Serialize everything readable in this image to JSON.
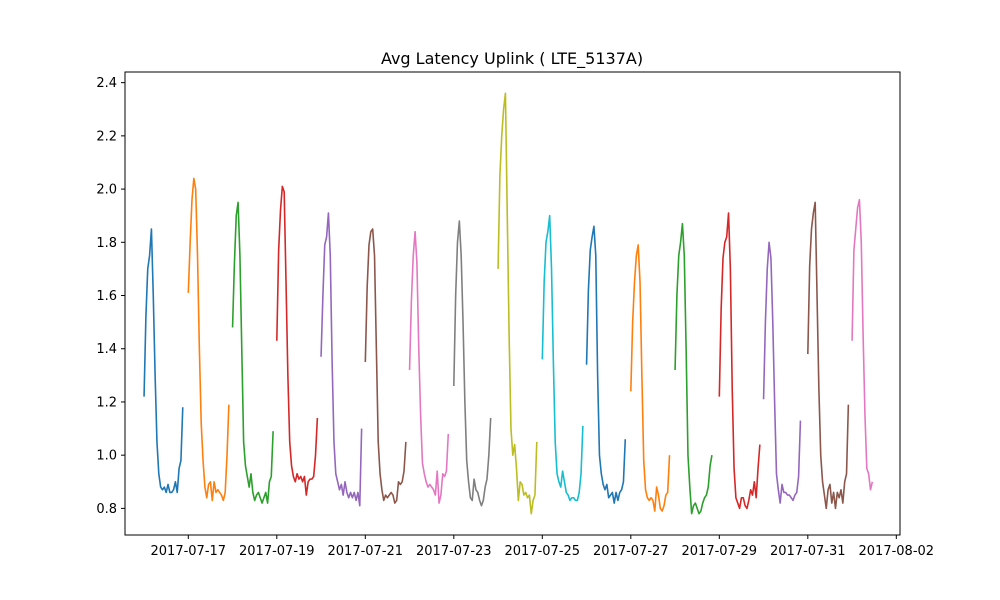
{
  "chart_data": {
    "type": "line",
    "title": "Avg Latency Uplink ( LTE_5137A)",
    "xlabel": "",
    "ylabel": "",
    "xlim": [
      "2017-07-15T13:40",
      "2017-08-02T02:00"
    ],
    "ylim": [
      0.7,
      2.44
    ],
    "grid": false,
    "legend": false,
    "x_ticks": [
      "2017-07-17",
      "2017-07-19",
      "2017-07-21",
      "2017-07-23",
      "2017-07-25",
      "2017-07-27",
      "2017-07-29",
      "2017-07-31",
      "2017-08-02"
    ],
    "y_ticks": [
      "0.8",
      "1.0",
      "1.2",
      "1.4",
      "1.6",
      "1.8",
      "2.0",
      "2.2",
      "2.4"
    ],
    "series": [
      {
        "color": "#1f77b4",
        "start": "2017-07-16",
        "values": [
          1.22,
          1.52,
          1.7,
          1.75,
          1.85,
          1.6,
          1.3,
          1.05,
          0.93,
          0.88,
          0.87,
          0.88,
          0.86,
          0.89,
          0.86,
          0.86,
          0.87,
          0.9,
          0.86,
          0.95,
          0.98,
          1.18
        ]
      },
      {
        "color": "#ff7f0e",
        "start": "2017-07-17",
        "values": [
          1.61,
          1.8,
          1.96,
          2.04,
          2.0,
          1.75,
          1.4,
          1.12,
          0.98,
          0.88,
          0.84,
          0.89,
          0.9,
          0.83,
          0.9,
          0.86,
          0.87,
          0.86,
          0.85,
          0.83,
          0.86,
          1.0,
          1.19
        ]
      },
      {
        "color": "#2ca02c",
        "start": "2017-07-18",
        "values": [
          1.48,
          1.72,
          1.9,
          1.95,
          1.75,
          1.4,
          1.05,
          0.96,
          0.92,
          0.88,
          0.93,
          0.86,
          0.83,
          0.85,
          0.86,
          0.84,
          0.82,
          0.84,
          0.86,
          0.82,
          0.9,
          0.92,
          1.09
        ]
      },
      {
        "color": "#d62728",
        "start": "2017-07-19",
        "values": [
          1.43,
          1.77,
          1.92,
          2.01,
          1.99,
          1.65,
          1.3,
          1.05,
          0.96,
          0.92,
          0.9,
          0.93,
          0.91,
          0.92,
          0.9,
          0.92,
          0.85,
          0.9,
          0.91,
          0.91,
          0.92,
          1.0,
          1.14
        ]
      },
      {
        "color": "#9467bd",
        "start": "2017-07-20",
        "values": [
          1.37,
          1.6,
          1.79,
          1.82,
          1.91,
          1.75,
          1.35,
          1.05,
          0.93,
          0.9,
          0.87,
          0.89,
          0.85,
          0.9,
          0.86,
          0.84,
          0.86,
          0.84,
          0.86,
          0.83,
          0.86,
          0.81,
          1.1
        ]
      },
      {
        "color": "#8c564b",
        "start": "2017-07-21",
        "values": [
          1.35,
          1.63,
          1.79,
          1.84,
          1.85,
          1.75,
          1.4,
          1.05,
          0.93,
          0.87,
          0.83,
          0.85,
          0.84,
          0.85,
          0.86,
          0.85,
          0.82,
          0.83,
          0.9,
          0.89,
          0.9,
          0.94,
          1.05
        ]
      },
      {
        "color": "#e377c2",
        "start": "2017-07-22",
        "values": [
          1.32,
          1.58,
          1.75,
          1.84,
          1.72,
          1.4,
          1.15,
          0.97,
          0.93,
          0.9,
          0.88,
          0.89,
          0.88,
          0.87,
          0.85,
          0.94,
          0.82,
          0.85,
          0.93,
          0.92,
          0.94,
          1.08
        ]
      },
      {
        "color": "#7f7f7f",
        "start": "2017-07-23",
        "values": [
          1.26,
          1.6,
          1.8,
          1.88,
          1.75,
          1.5,
          1.2,
          0.98,
          0.9,
          0.84,
          0.83,
          0.91,
          0.87,
          0.86,
          0.83,
          0.81,
          0.83,
          0.88,
          0.91,
          1.0,
          1.14
        ]
      },
      {
        "color": "#bcbd22",
        "start": "2017-07-24",
        "values": [
          1.7,
          2.05,
          2.2,
          2.3,
          2.36,
          1.9,
          1.45,
          1.1,
          1.0,
          1.04,
          0.95,
          0.83,
          0.9,
          0.89,
          0.85,
          0.86,
          0.84,
          0.85,
          0.78,
          0.83,
          0.85,
          1.05
        ]
      },
      {
        "color": "#17becf",
        "start": "2017-07-25",
        "values": [
          1.36,
          1.65,
          1.8,
          1.84,
          1.9,
          1.7,
          1.35,
          1.05,
          0.93,
          0.9,
          0.88,
          0.94,
          0.9,
          0.86,
          0.85,
          0.83,
          0.84,
          0.84,
          0.83,
          0.83,
          0.86,
          0.93,
          1.11
        ]
      },
      {
        "color": "#1f77b4",
        "start": "2017-07-26",
        "values": [
          1.34,
          1.62,
          1.77,
          1.82,
          1.86,
          1.75,
          1.3,
          1.0,
          0.93,
          0.89,
          0.87,
          0.89,
          0.84,
          0.85,
          0.86,
          0.82,
          0.86,
          0.83,
          0.86,
          0.87,
          0.9,
          1.06
        ]
      },
      {
        "color": "#ff7f0e",
        "start": "2017-07-27",
        "values": [
          1.24,
          1.5,
          1.65,
          1.75,
          1.79,
          1.65,
          1.3,
          0.98,
          0.87,
          0.84,
          0.83,
          0.84,
          0.83,
          0.79,
          0.88,
          0.85,
          0.8,
          0.79,
          0.81,
          0.85,
          0.86,
          1.0
        ]
      },
      {
        "color": "#2ca02c",
        "start": "2017-07-28",
        "values": [
          1.32,
          1.6,
          1.75,
          1.8,
          1.87,
          1.75,
          1.4,
          1.0,
          0.88,
          0.78,
          0.81,
          0.82,
          0.8,
          0.78,
          0.79,
          0.82,
          0.84,
          0.85,
          0.88,
          0.96,
          1.0
        ]
      },
      {
        "color": "#d62728",
        "start": "2017-07-29",
        "values": [
          1.22,
          1.55,
          1.74,
          1.8,
          1.82,
          1.91,
          1.7,
          1.25,
          0.95,
          0.84,
          0.82,
          0.8,
          0.84,
          0.84,
          0.81,
          0.8,
          0.83,
          0.87,
          0.85,
          0.9,
          0.84,
          0.95,
          1.04
        ]
      },
      {
        "color": "#9467bd",
        "start": "2017-07-30",
        "values": [
          1.21,
          1.5,
          1.7,
          1.8,
          1.74,
          1.5,
          1.2,
          0.93,
          0.87,
          0.82,
          0.89,
          0.86,
          0.86,
          0.85,
          0.85,
          0.84,
          0.83,
          0.85,
          0.86,
          0.92,
          1.13
        ]
      },
      {
        "color": "#8c564b",
        "start": "2017-07-31",
        "values": [
          1.38,
          1.71,
          1.85,
          1.91,
          1.95,
          1.6,
          1.25,
          1.0,
          0.9,
          0.85,
          0.8,
          0.87,
          0.89,
          0.82,
          0.86,
          0.8,
          0.86,
          0.84,
          0.87,
          0.82,
          0.9,
          0.93,
          1.19
        ]
      },
      {
        "color": "#e377c2",
        "start": "2017-08-01",
        "values": [
          1.43,
          1.77,
          1.85,
          1.93,
          1.96,
          1.8,
          1.45,
          1.15,
          0.95,
          0.93,
          0.87,
          0.9
        ]
      }
    ]
  }
}
